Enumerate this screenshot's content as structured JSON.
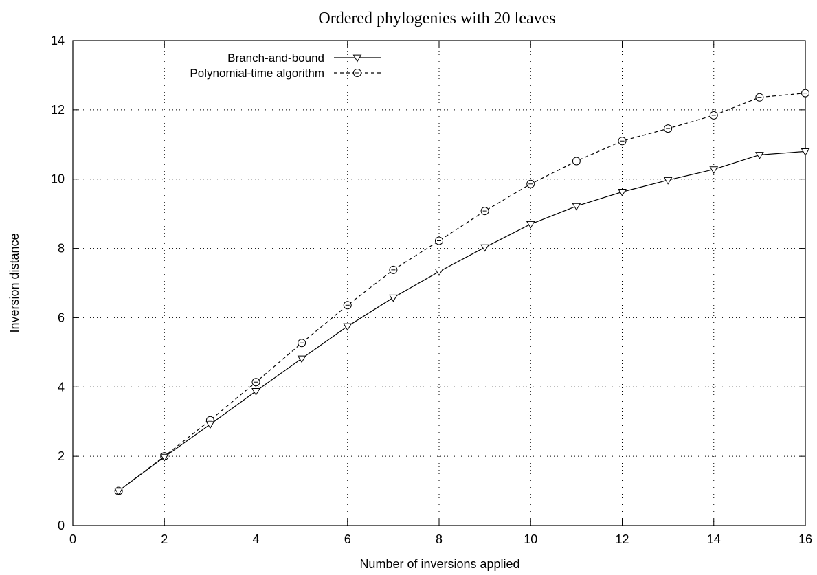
{
  "chart_data": {
    "type": "line",
    "title": "Ordered phylogenies with 20 leaves",
    "xlabel": "Number of inversions applied",
    "ylabel": "Inversion distance",
    "xlim": [
      0,
      16
    ],
    "ylim": [
      0,
      14
    ],
    "xticks": [
      0,
      2,
      4,
      6,
      8,
      10,
      12,
      14,
      16
    ],
    "yticks": [
      0,
      2,
      4,
      6,
      8,
      10,
      12,
      14
    ],
    "grid": true,
    "legend_position": "top-left",
    "x": [
      1,
      2,
      3,
      4,
      5,
      6,
      7,
      8,
      9,
      10,
      11,
      12,
      13,
      14,
      15,
      16
    ],
    "series": [
      {
        "name": "Branch-and-bound",
        "marker": "triangle-down",
        "line_style": "solid",
        "values": [
          1.0,
          1.98,
          2.92,
          3.88,
          4.82,
          5.75,
          6.58,
          7.33,
          8.03,
          8.7,
          9.22,
          9.63,
          9.97,
          10.28,
          10.7,
          10.8
        ]
      },
      {
        "name": "Polynomial-time algorithm",
        "marker": "circle",
        "line_style": "dashed",
        "values": [
          1.0,
          2.0,
          3.04,
          4.14,
          5.27,
          6.36,
          7.38,
          8.22,
          9.08,
          9.86,
          10.52,
          11.1,
          11.46,
          11.84,
          12.36,
          12.48
        ]
      }
    ]
  }
}
